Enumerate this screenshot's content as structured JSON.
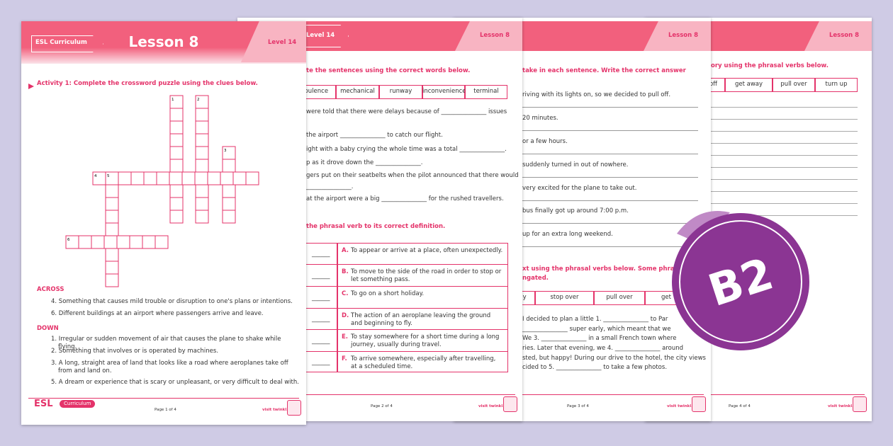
{
  "page1": {
    "header": {
      "curriculum": "ESL Curriculum",
      "title": "Lesson 8",
      "level": "Level 14"
    },
    "activity": "Activity 1: Complete the crossword puzzle using the clues below.",
    "grid_numbers": [
      "1",
      "2",
      "3",
      "4",
      "5",
      "6"
    ],
    "across": {
      "heading": "ACROSS",
      "clues": [
        "4. Something that causes mild trouble or disruption to one's plans or intentions.",
        "6. Different buildings at an airport where passengers arrive and leave."
      ]
    },
    "down": {
      "heading": "DOWN",
      "clues": [
        "1. Irregular or sudden movement of air that causes the plane to shake while flying.",
        "2. Something that involves or is operated by machines.",
        "3. A long, straight area of land that looks like a road where aeroplanes take off from and land on.",
        "5. A dream or experience that is scary or unpleasant, or very difficult to deal with."
      ]
    },
    "footer": {
      "brand": "ESL",
      "curriculum": "Curriculum",
      "page": "Page 1 of 4",
      "site": "visit twinkl.com"
    }
  },
  "page2": {
    "header": {
      "level": "Level 14",
      "lesson": "Lesson 8"
    },
    "instruction": "te the sentences using the correct words below.",
    "word_bank": [
      "rbulence",
      "mechanical",
      "runway",
      "inconvenience",
      "terminal"
    ],
    "sentences": [
      "were told that there were delays because of _______________ issues",
      "the airport _______________ to catch our flight.",
      "ight with a baby crying the whole time was a total _______________.",
      "p as it drove down the _______________.",
      "gers put on their seatbelts when the pilot announced that there would",
      "_______________.",
      "at the airport were a big _______________ for the rushed travellers."
    ],
    "activity": "the phrasal verb to its correct definition.",
    "definitions": [
      {
        "blank": "______",
        "letter": "A.",
        "text": "To appear or arrive at a place, often unexpectedly."
      },
      {
        "blank": "______",
        "letter": "B.",
        "text": "To move to the side of the road in order to stop or let something pass."
      },
      {
        "blank": "______",
        "letter": "C.",
        "text": "To go on a short holiday."
      },
      {
        "blank": "______",
        "letter": "D.",
        "text": "The action of an aeroplane leaving the ground and beginning to fly."
      },
      {
        "blank": "______",
        "letter": "E.",
        "text": "To stay somewhere for a short time during a long journey, usually during travel."
      },
      {
        "blank": "______",
        "letter": "F.",
        "text": "To arrive somewhere, especially after travelling, at a scheduled time."
      }
    ],
    "footer": {
      "page": "Page 2 of 4",
      "site": "visit twinkl.com"
    }
  },
  "page3": {
    "header": {
      "lesson": "Lesson 8"
    },
    "instruction": "take in each sentence. Write the correct answer",
    "sentences": [
      "riving with its lights on, so we decided to pull off.",
      "20 minutes.",
      "or a few hours.",
      "suddenly turned in out of nowhere.",
      "very excited for the plane to take out.",
      "bus finally got up around 7:00 p.m.",
      "up for an extra long weekend."
    ],
    "activity": [
      "xt using the phrasal verbs below. Some phrasal",
      "ngated."
    ],
    "word_bank": [
      "ay",
      "stop over",
      "pull over",
      "get"
    ],
    "paragraph": [
      "I decided to plan a little 1. _______________ to Par",
      "_______________ super early, which meant that we",
      "We 3. _______________ in a small French town where",
      "ries. Later that evening, we 4. _______________ around",
      "sted, but happy! During our drive to the hotel, the city views",
      "cided to 5. _______________ to take a few photos."
    ],
    "footer": {
      "page": "Page 3 of 4",
      "site": "visit twinkl.com"
    }
  },
  "page4": {
    "header": {
      "lesson": "Lesson 8"
    },
    "instruction": "ory using the phrasal verbs below.",
    "word_bank": [
      "off",
      "get away",
      "pull over",
      "turn up"
    ],
    "footer": {
      "page": "Page 4 of 4",
      "site": "visit twinkl.com"
    }
  },
  "badge": "B2"
}
